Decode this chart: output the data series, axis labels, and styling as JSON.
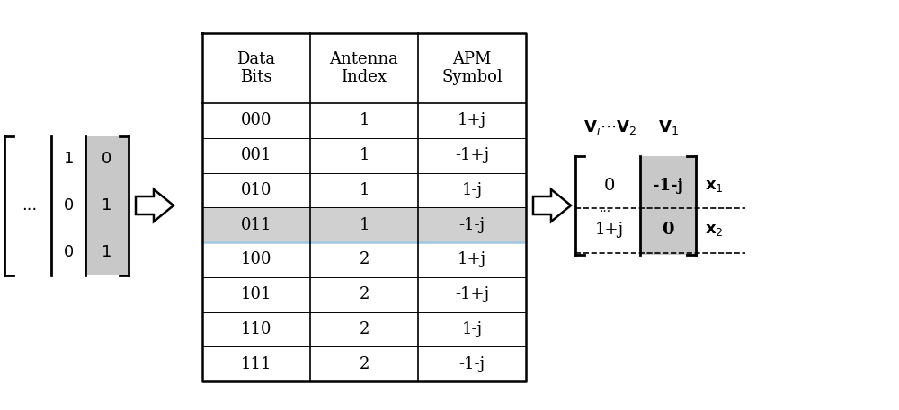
{
  "bg_color": "#ffffff",
  "table_headers": [
    "Data\nBits",
    "Antenna\nIndex",
    "APM\nSymbol"
  ],
  "table_rows": [
    [
      "000",
      "1",
      "1+j"
    ],
    [
      "001",
      "1",
      "-1+j"
    ],
    [
      "010",
      "1",
      "1-j"
    ],
    [
      "011",
      "1",
      "-1-j"
    ],
    [
      "100",
      "2",
      "1+j"
    ],
    [
      "101",
      "2",
      "-1+j"
    ],
    [
      "110",
      "2",
      "1-j"
    ],
    [
      "111",
      "2",
      "-1-j"
    ]
  ],
  "highlight_row": 3,
  "highlight_color": "#d0d0d0",
  "highlight_line_color": "#a0c8e0",
  "font_size_table": 13,
  "font_size_matrix": 14,
  "arrow_color": "#000000"
}
